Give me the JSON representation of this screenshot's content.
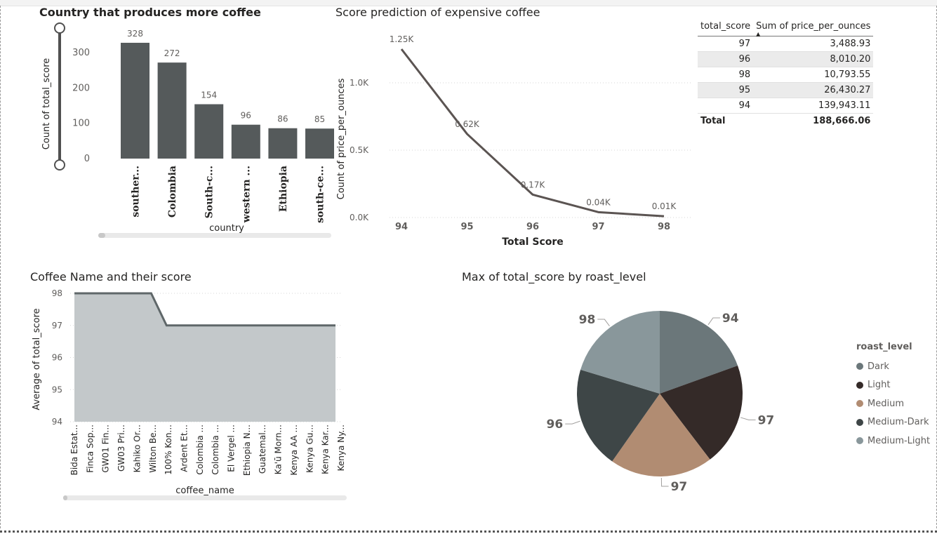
{
  "bar_chart": {
    "title": "Country that produces more coffee",
    "chart_data": {
      "type": "bar",
      "title": "Country that produces more coffee",
      "xlabel": "country",
      "ylabel": "Count of total_score",
      "categories": [
        "souther...",
        "Colombia",
        "South-c...",
        "western ...",
        "Ethiopia",
        "south-ce..."
      ],
      "values": [
        328,
        272,
        154,
        96,
        86,
        85
      ],
      "data_labels": [
        "328",
        "272",
        "154",
        "96",
        "86",
        "85"
      ],
      "yticks": [
        "0",
        "100",
        "200",
        "300"
      ],
      "ylim": [
        0,
        340
      ],
      "color": "#555a5b"
    }
  },
  "line_chart": {
    "title": "Score prediction of expensive coffee",
    "chart_data": {
      "type": "line",
      "title": "Score prediction of expensive coffee",
      "xlabel": "Total Score",
      "ylabel": "Count of price_per_ounces",
      "x": [
        "94",
        "95",
        "96",
        "97",
        "98"
      ],
      "values": [
        1250,
        620,
        170,
        40,
        10
      ],
      "data_labels": [
        "1.25K",
        "0.62K",
        "0.17K",
        "0.04K",
        "0.01K"
      ],
      "yticks": [
        "0.0K",
        "0.5K",
        "1.0K"
      ],
      "ylim": [
        0,
        1300
      ],
      "color": "#5b5452"
    }
  },
  "table": {
    "headers": [
      "total_score",
      "Sum of price_per_ounces"
    ],
    "rows": [
      [
        "97",
        "3,488.93"
      ],
      [
        "96",
        "8,010.20"
      ],
      [
        "98",
        "10,793.55"
      ],
      [
        "95",
        "26,430.27"
      ],
      [
        "94",
        "139,943.11"
      ]
    ],
    "total": [
      "Total",
      "188,666.06"
    ]
  },
  "area_chart": {
    "title": "Coffee Name and their score",
    "chart_data": {
      "type": "area",
      "title": "Coffee Name and their score",
      "xlabel": "coffee_name",
      "ylabel": "Average of total_score",
      "categories": [
        "Bida Estat...",
        "Finca Sop...",
        "GW01 Fin...",
        "GW03 Pri...",
        "Kahiko Or...",
        "Wilton Be...",
        "100% Kon...",
        "Ardent Et...",
        "Colombia ...",
        "Colombia ...",
        "El Vergel ...",
        "Ethiopia N...",
        "Guatemal...",
        "Ka'ū Morn...",
        "Kenya AA ...",
        "Kenya Gu...",
        "Kenya Kar...",
        "Kenya Ny..."
      ],
      "values": [
        98,
        98,
        98,
        98,
        98,
        98,
        97,
        97,
        97,
        97,
        97,
        97,
        97,
        97,
        97,
        97,
        97,
        97
      ],
      "yticks": [
        "94",
        "95",
        "96",
        "97",
        "98"
      ],
      "ylim": [
        94,
        98
      ],
      "fill_color": "#c3c8ca",
      "line_color": "#5f6769"
    }
  },
  "pie_chart": {
    "title": "Max of total_score by roast_level",
    "chart_data": {
      "type": "pie",
      "title": "Max of total_score by roast_level",
      "legend_title": "roast_level",
      "labels": [
        "Dark",
        "Light",
        "Medium",
        "Medium-Dark",
        "Medium-Light"
      ],
      "values": [
        94,
        97,
        97,
        96,
        98
      ],
      "data_labels": [
        "94",
        "97",
        "97",
        "96",
        "98"
      ],
      "colors": [
        "#6b777a",
        "#342a28",
        "#b18c72",
        "#3e4647",
        "#89979b"
      ],
      "legend_position": "right"
    }
  }
}
